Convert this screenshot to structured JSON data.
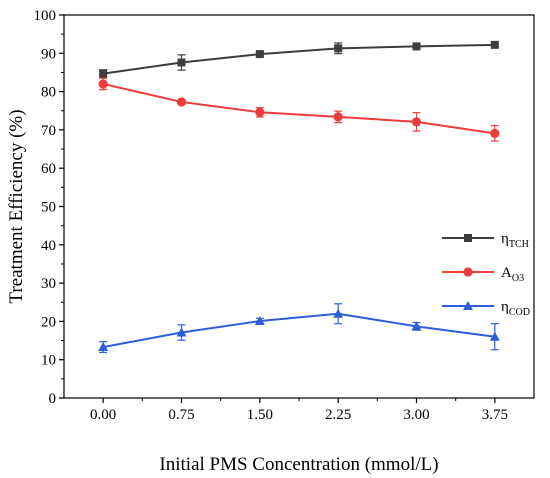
{
  "chart_data": {
    "type": "line",
    "xlabel": "Initial PMS Concentration (mmol/L)",
    "ylabel": "Treatment Efficiency (%)",
    "ylim": [
      0,
      100
    ],
    "yticks": [
      0,
      10,
      20,
      30,
      40,
      50,
      60,
      70,
      80,
      90,
      100
    ],
    "xticks": [
      "0.00",
      "0.75",
      "1.50",
      "2.25",
      "3.00",
      "3.75"
    ],
    "x": [
      0.0,
      0.75,
      1.5,
      2.25,
      3.0,
      3.75
    ],
    "legend_position": "right-middle",
    "grid": false,
    "series": [
      {
        "name": "η",
        "sub": "TCH",
        "marker": "square",
        "color": "#3d3d3d",
        "values": [
          84.7,
          87.6,
          89.8,
          91.3,
          91.8,
          92.2
        ],
        "errors": [
          1.0,
          2.0,
          0.6,
          1.4,
          0.8,
          0.5
        ]
      },
      {
        "name": "A",
        "sub": "O3",
        "marker": "circle",
        "color": "#ee3b3b",
        "values": [
          82.0,
          77.3,
          74.6,
          73.4,
          72.1,
          69.1
        ],
        "errors": [
          1.5,
          0.6,
          1.2,
          1.5,
          2.4,
          2.0
        ]
      },
      {
        "name": "η",
        "sub": "COD",
        "marker": "triangle",
        "color": "#2d5fd8",
        "values": [
          13.3,
          17.1,
          20.1,
          22.0,
          18.7,
          16.0
        ],
        "errors": [
          1.4,
          2.0,
          0.7,
          2.6,
          1.0,
          3.4
        ]
      }
    ]
  }
}
